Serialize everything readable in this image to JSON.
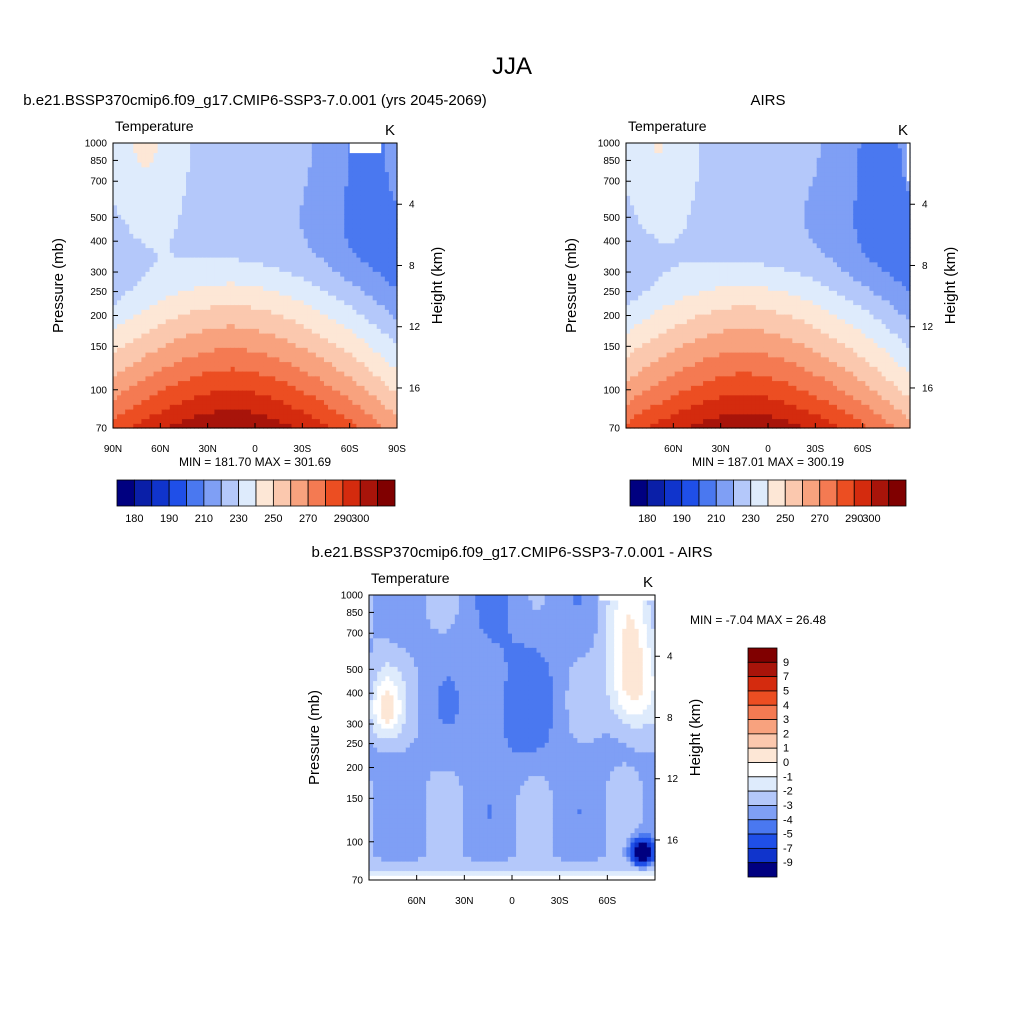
{
  "figure": {
    "title": "JJA"
  },
  "chart_data": [
    {
      "type": "heatmap",
      "title": "b.e21.BSSP370cmip6.f09_g17.CMIP6-SSP3-7.0.001 (yrs 2045-2069)",
      "left_label": "Temperature",
      "units": "K",
      "ylabel": "Pressure (mb)",
      "ylabel_right": "Height (km)",
      "xlabel": "",
      "x_ticks": [
        "90N",
        "60N",
        "30N",
        "0",
        "30S",
        "60S",
        "90S"
      ],
      "x_range": [
        90,
        -90
      ],
      "y_ticks": [
        "70",
        "100",
        "150",
        "200",
        "250",
        "300",
        "400",
        "500",
        "700",
        "850",
        "1000"
      ],
      "y_range_mb": [
        1000,
        70
      ],
      "y_scale": "log",
      "height_ticks": [
        "4",
        "8",
        "12",
        "16"
      ],
      "min_max": "MIN = 181.70   MAX = 301.69",
      "colorbar": {
        "levels": [
          175,
          180,
          185,
          190,
          200,
          210,
          220,
          230,
          240,
          250,
          260,
          270,
          280,
          290,
          300
        ],
        "tick_labels": [
          "180",
          "190",
          "210",
          "230",
          "250",
          "270",
          "290",
          "300"
        ],
        "colors": [
          "#000080",
          "#0a1fa8",
          "#1034cc",
          "#1f4fe8",
          "#4a78f0",
          "#7f9ff5",
          "#b4c8fa",
          "#deebfc",
          "#fde7d6",
          "#fbc8ae",
          "#f8a27e",
          "#f47a52",
          "#ec4e22",
          "#d42b0e",
          "#a8140a",
          "#800000"
        ]
      }
    },
    {
      "type": "heatmap",
      "title": "AIRS",
      "left_label": "Temperature",
      "units": "K",
      "ylabel": "Pressure (mb)",
      "ylabel_right": "Height (km)",
      "xlabel": "",
      "x_ticks": [
        "60N",
        "30N",
        "0",
        "30S",
        "60S"
      ],
      "x_range": [
        90,
        -90
      ],
      "y_ticks": [
        "70",
        "100",
        "150",
        "200",
        "250",
        "300",
        "400",
        "500",
        "700",
        "850",
        "1000"
      ],
      "y_range_mb": [
        1000,
        70
      ],
      "y_scale": "log",
      "height_ticks": [
        "4",
        "8",
        "12",
        "16"
      ],
      "min_max": "MIN = 187.01   MAX = 300.19",
      "colorbar": {
        "levels": [
          175,
          180,
          185,
          190,
          200,
          210,
          220,
          230,
          240,
          250,
          260,
          270,
          280,
          290,
          300
        ],
        "tick_labels": [
          "180",
          "190",
          "210",
          "230",
          "250",
          "270",
          "290",
          "300"
        ],
        "colors": [
          "#000080",
          "#0a1fa8",
          "#1034cc",
          "#1f4fe8",
          "#4a78f0",
          "#7f9ff5",
          "#b4c8fa",
          "#deebfc",
          "#fde7d6",
          "#fbc8ae",
          "#f8a27e",
          "#f47a52",
          "#ec4e22",
          "#d42b0e",
          "#a8140a",
          "#800000"
        ]
      }
    },
    {
      "type": "heatmap",
      "title": "b.e21.BSSP370cmip6.f09_g17.CMIP6-SSP3-7.0.001 - AIRS",
      "left_label": "Temperature",
      "units": "K",
      "ylabel": "Pressure (mb)",
      "ylabel_right": "Height (km)",
      "xlabel": "",
      "x_ticks": [
        "60N",
        "30N",
        "0",
        "30S",
        "60S"
      ],
      "x_range": [
        90,
        -90
      ],
      "y_ticks": [
        "70",
        "100",
        "150",
        "200",
        "250",
        "300",
        "400",
        "500",
        "700",
        "850",
        "1000"
      ],
      "y_range_mb": [
        1000,
        70
      ],
      "y_scale": "log",
      "height_ticks": [
        "4",
        "8",
        "12",
        "16"
      ],
      "min_max": "MIN =  -7.04  MAX =  26.48",
      "colorbar": {
        "orientation": "vertical",
        "tick_labels": [
          "9",
          "7",
          "5",
          "4",
          "3",
          "2",
          "1",
          "0",
          "-1",
          "-2",
          "-3",
          "-4",
          "-5",
          "-7",
          "-9"
        ],
        "colors": [
          "#800000",
          "#a8140a",
          "#d42b0e",
          "#ec4e22",
          "#f47a52",
          "#f8a27e",
          "#fbc8ae",
          "#fde7d6",
          "#ffffff",
          "#deebfc",
          "#b4c8fa",
          "#7f9ff5",
          "#4a78f0",
          "#1f4fe8",
          "#1034cc",
          "#000080"
        ]
      }
    }
  ]
}
